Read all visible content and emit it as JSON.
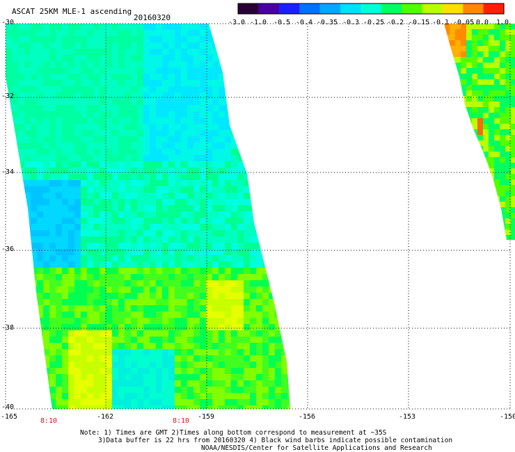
{
  "header": {
    "title": "ASCAT 25KM MLE-1 ascending",
    "date": "20160320"
  },
  "colorbar": {
    "tick_labels": [
      "-3.0",
      "-1.0",
      "-0.5",
      "-0.4",
      "-0.35",
      "-0.3",
      "-0.25",
      "-0.2",
      "-0.15",
      "-0.1",
      "-0.05",
      "0.0",
      "1.0"
    ],
    "colors": [
      "#2a0038",
      "#4a00a0",
      "#1a20ff",
      "#0070ff",
      "#00a8ff",
      "#00e0ff",
      "#00ffd8",
      "#00ff60",
      "#50ff00",
      "#b8ff00",
      "#ffe000",
      "#ff8800",
      "#ff2000"
    ]
  },
  "map": {
    "lat_labels": [
      "-30",
      "-32",
      "-34",
      "-36",
      "-38",
      "-40"
    ],
    "lon_labels": [
      "-165",
      "-162",
      "-159",
      "-156",
      "-153",
      "-150"
    ],
    "lat_range": [
      -40,
      -30
    ],
    "lon_range": [
      -165,
      -150
    ],
    "grid": true,
    "swaths": [
      {
        "name": "west_pass",
        "time_labels": [
          {
            "lon": -162,
            "text": "8:10"
          },
          {
            "lon": -159,
            "text": "8:10"
          }
        ]
      },
      {
        "name": "east_pass"
      }
    ]
  },
  "notes": {
    "line1": "Note: 1) Times are GMT 2)Times along bottom correspond to measurement at ~35S",
    "line2": "3)Data buffer is 22 hrs from 20160320 4) Black wind barbs indicate possible contamination",
    "line3": "NOAA/NESDIS/Center for Satellite Applications and Research"
  }
}
